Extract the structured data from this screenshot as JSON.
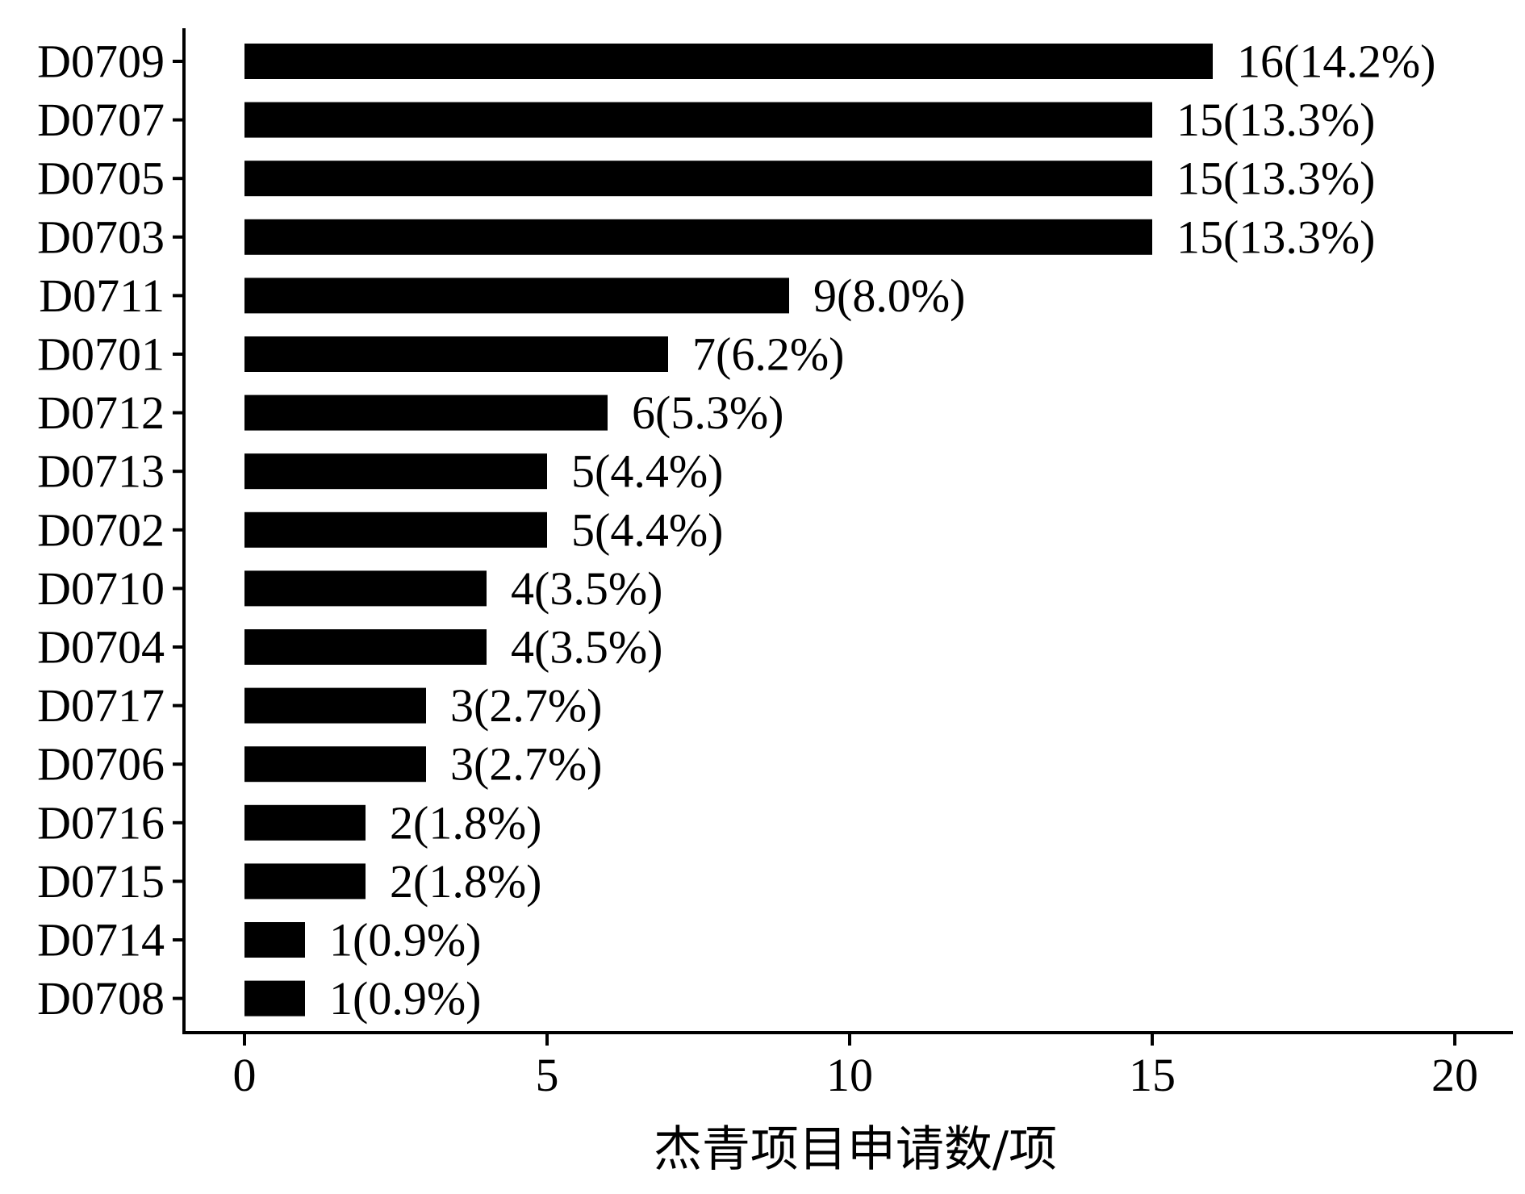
{
  "chart_data": {
    "type": "bar",
    "orientation": "horizontal",
    "categories": [
      "D0709",
      "D0707",
      "D0705",
      "D0703",
      "D0711",
      "D0701",
      "D0712",
      "D0713",
      "D0702",
      "D0710",
      "D0704",
      "D0717",
      "D0706",
      "D0716",
      "D0715",
      "D0714",
      "D0708"
    ],
    "values": [
      16,
      15,
      15,
      15,
      9,
      7,
      6,
      5,
      5,
      4,
      4,
      3,
      3,
      2,
      2,
      1,
      1
    ],
    "data_labels": [
      "16(14.2%)",
      "15(13.3%)",
      "15(13.3%)",
      "15(13.3%)",
      "9(8.0%)",
      "7(6.2%)",
      "6(5.3%)",
      "5(4.4%)",
      "5(4.4%)",
      "4(3.5%)",
      "4(3.5%)",
      "3(2.7%)",
      "3(2.7%)",
      "2(1.8%)",
      "2(1.8%)",
      "1(0.9%)",
      "1(0.9%)"
    ],
    "xlabel": "杰青项目申请数/项",
    "ylabel": "",
    "xlim": [
      0,
      20
    ],
    "x_ticks": [
      0,
      5,
      10,
      15,
      20
    ],
    "x_tick_labels": [
      "0",
      "5",
      "10",
      "15",
      "20"
    ],
    "grid": false,
    "legend": "none",
    "bar_color": "#000000",
    "axis_color": "#000000"
  }
}
